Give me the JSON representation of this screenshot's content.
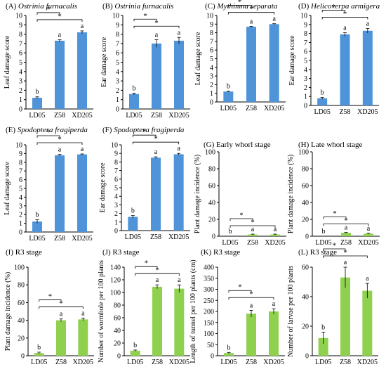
{
  "figure": {
    "background": "#ffffff",
    "blue": "#4f94d8",
    "green": "#8fd14f",
    "axis_color": "#000000"
  },
  "chart_data": [
    {
      "id": "A",
      "type": "bar",
      "panel_label": "(A)",
      "title": "Ostrinia furnacalis",
      "title_italic": true,
      "ylabel": "Leaf damage score",
      "xlabel": "",
      "categories": [
        "LD05",
        "Z58",
        "XD205"
      ],
      "series": [
        {
          "values": [
            1.2,
            7.3,
            8.2
          ],
          "errors": [
            0.1,
            0.1,
            0.15
          ],
          "letters": [
            "b",
            "a",
            "a"
          ]
        }
      ],
      "ylim": [
        0,
        10
      ],
      "yticks": [
        0,
        1,
        2,
        3,
        4,
        5,
        6,
        7,
        8,
        9,
        10
      ],
      "color": "#4f94d8",
      "grid": false,
      "significance": [
        {
          "from": 0,
          "to": 1,
          "label": "*"
        },
        {
          "from": 0,
          "to": 2,
          "label": "*"
        }
      ]
    },
    {
      "id": "B",
      "type": "bar",
      "panel_label": "(B)",
      "title": "Ostrinia furnacalis",
      "title_italic": true,
      "ylabel": "Ear damage score",
      "xlabel": "",
      "categories": [
        "LD05",
        "Z58",
        "XD205"
      ],
      "series": [
        {
          "values": [
            1.6,
            7.0,
            7.3
          ],
          "errors": [
            0.1,
            0.4,
            0.35
          ],
          "letters": [
            "b",
            "a",
            "a"
          ]
        }
      ],
      "ylim": [
        0,
        10
      ],
      "yticks": [
        0,
        1,
        2,
        3,
        4,
        5,
        6,
        7,
        8,
        9,
        10
      ],
      "color": "#4f94d8",
      "grid": false,
      "significance": [
        {
          "from": 0,
          "to": 1,
          "label": "*"
        },
        {
          "from": 0,
          "to": 2,
          "label": "*"
        }
      ]
    },
    {
      "id": "C",
      "type": "bar",
      "panel_label": "(C)",
      "title": "Mythimna separata",
      "title_italic": true,
      "ylabel": "Leaf damage score",
      "xlabel": "",
      "categories": [
        "LD05",
        "Z58",
        "XD205"
      ],
      "series": [
        {
          "values": [
            1.2,
            8.7,
            9.0
          ],
          "errors": [
            0.05,
            0.05,
            0.05
          ],
          "letters": [
            "b",
            "a",
            "a"
          ]
        }
      ],
      "ylim": [
        0,
        10
      ],
      "yticks": [
        0,
        1,
        2,
        3,
        4,
        5,
        6,
        7,
        8,
        9,
        10
      ],
      "color": "#4f94d8",
      "grid": false,
      "significance": [
        {
          "from": 0,
          "to": 1,
          "label": "*"
        },
        {
          "from": 0,
          "to": 2,
          "label": "*"
        }
      ]
    },
    {
      "id": "D",
      "type": "bar",
      "panel_label": "(D)",
      "title": "Helicoverpa armigera",
      "title_italic": true,
      "ylabel": "Ear damage score",
      "xlabel": "",
      "categories": [
        "LD05",
        "Z58",
        "XD205"
      ],
      "series": [
        {
          "values": [
            0.8,
            7.9,
            8.3
          ],
          "errors": [
            0.1,
            0.2,
            0.25
          ],
          "letters": [
            "b",
            "a",
            "a"
          ]
        }
      ],
      "ylim": [
        0,
        10
      ],
      "yticks": [
        0,
        1,
        2,
        3,
        4,
        5,
        6,
        7,
        8,
        9,
        10
      ],
      "color": "#4f94d8",
      "grid": false,
      "significance": [
        {
          "from": 0,
          "to": 1,
          "label": "*"
        },
        {
          "from": 0,
          "to": 2,
          "label": "*"
        }
      ]
    },
    {
      "id": "E",
      "type": "bar",
      "panel_label": "(E)",
      "title": "Spodoptera fragiperda",
      "title_italic": true,
      "ylabel": "Leaf damage score",
      "xlabel": "",
      "categories": [
        "LD05",
        "Z58",
        "XD205"
      ],
      "series": [
        {
          "values": [
            1.2,
            8.8,
            8.9
          ],
          "errors": [
            0.2,
            0.1,
            0.05
          ],
          "letters": [
            "b",
            "a",
            "a"
          ]
        }
      ],
      "ylim": [
        0,
        10
      ],
      "yticks": [
        0,
        1,
        2,
        3,
        4,
        5,
        6,
        7,
        8,
        9,
        10
      ],
      "color": "#4f94d8",
      "grid": false,
      "significance": [
        {
          "from": 0,
          "to": 1,
          "label": "*"
        },
        {
          "from": 0,
          "to": 2,
          "label": "*"
        }
      ]
    },
    {
      "id": "F",
      "type": "bar",
      "panel_label": "(F)",
      "title": "Spodoptera fragiperda",
      "title_italic": true,
      "ylabel": "Ear damage score",
      "xlabel": "",
      "categories": [
        "LD05",
        "Z58",
        "XD205"
      ],
      "series": [
        {
          "values": [
            1.6,
            8.5,
            8.9
          ],
          "errors": [
            0.15,
            0.1,
            0.1
          ],
          "letters": [
            "b",
            "a",
            "a"
          ]
        }
      ],
      "ylim": [
        0,
        10
      ],
      "yticks": [
        0,
        1,
        2,
        3,
        4,
        5,
        6,
        7,
        8,
        9,
        10
      ],
      "color": "#4f94d8",
      "grid": false,
      "significance": [
        {
          "from": 0,
          "to": 1,
          "label": "*"
        },
        {
          "from": 0,
          "to": 2,
          "label": "*"
        }
      ]
    },
    {
      "id": "G",
      "type": "bar",
      "panel_label": "(G)",
      "title": "Early whorl stage",
      "title_italic": false,
      "ylabel": "Plant damage incidence (%)",
      "xlabel": "",
      "categories": [
        "LD05",
        "Z58",
        "XD205"
      ],
      "series": [
        {
          "values": [
            0,
            2,
            2
          ],
          "errors": [
            0,
            0.5,
            0.5
          ],
          "letters": [
            "b",
            "a",
            "a"
          ]
        }
      ],
      "ylim": [
        0,
        100
      ],
      "yticks": [
        0,
        20,
        40,
        60,
        80,
        100
      ],
      "color": "#8fd14f",
      "grid": false,
      "significance": [
        {
          "from": 0,
          "to": 1,
          "label": "*"
        },
        {
          "from": 0,
          "to": 2,
          "label": "*"
        }
      ]
    },
    {
      "id": "H",
      "type": "bar",
      "panel_label": "(H)",
      "title": "Late whorl stage",
      "title_italic": false,
      "ylabel": "Plant damage incidence (%)",
      "xlabel": "",
      "categories": [
        "LD05",
        "Z58",
        "XD205"
      ],
      "series": [
        {
          "values": [
            0,
            4,
            3
          ],
          "errors": [
            0,
            0.5,
            0.5
          ],
          "letters": [
            "b",
            "a",
            "a"
          ]
        }
      ],
      "ylim": [
        0,
        100
      ],
      "yticks": [
        0,
        20,
        40,
        60,
        80,
        100
      ],
      "color": "#8fd14f",
      "grid": false,
      "significance": [
        {
          "from": 0,
          "to": 1,
          "label": "*"
        },
        {
          "from": 0,
          "to": 2,
          "label": "*"
        }
      ]
    },
    {
      "id": "I",
      "type": "bar",
      "panel_label": "(I)",
      "title": "R3 stage",
      "title_italic": false,
      "ylabel": "Plant damage incidence (%)",
      "xlabel": "",
      "categories": [
        "LD05",
        "Z58",
        "XD205"
      ],
      "series": [
        {
          "values": [
            3,
            40,
            41
          ],
          "errors": [
            1,
            1.5,
            1.5
          ],
          "letters": [
            "b",
            "a",
            "a"
          ]
        }
      ],
      "ylim": [
        0,
        100
      ],
      "yticks": [
        0,
        20,
        40,
        60,
        80,
        100
      ],
      "color": "#8fd14f",
      "grid": false,
      "significance": [
        {
          "from": 0,
          "to": 1,
          "label": "*"
        },
        {
          "from": 0,
          "to": 2,
          "label": "*"
        }
      ]
    },
    {
      "id": "J",
      "type": "bar",
      "panel_label": "(J)",
      "title": "R3 stage",
      "title_italic": false,
      "ylabel": "Number of wormhole per 100 plants",
      "xlabel": "",
      "categories": [
        "LD05",
        "Z58",
        "XD205"
      ],
      "series": [
        {
          "values": [
            8,
            109,
            106
          ],
          "errors": [
            1,
            3,
            6
          ],
          "letters": [
            "b",
            "a",
            "a"
          ]
        }
      ],
      "ylim": [
        0,
        140
      ],
      "yticks": [
        0,
        20,
        40,
        60,
        80,
        100,
        120,
        140
      ],
      "color": "#8fd14f",
      "grid": false,
      "significance": [
        {
          "from": 0,
          "to": 1,
          "label": "*"
        },
        {
          "from": 0,
          "to": 2,
          "label": "*"
        }
      ]
    },
    {
      "id": "K",
      "type": "bar",
      "panel_label": "(K)",
      "title": "R3 stage",
      "title_italic": false,
      "ylabel": "Length of tunnel per 100 plants (cm)",
      "xlabel": "",
      "categories": [
        "LD05",
        "Z58",
        "XD205"
      ],
      "series": [
        {
          "values": [
            12,
            190,
            200
          ],
          "errors": [
            3,
            15,
            12
          ],
          "letters": [
            "b",
            "a",
            "a"
          ]
        }
      ],
      "ylim": [
        0,
        400
      ],
      "yticks": [
        0,
        50,
        100,
        150,
        200,
        250,
        300,
        350,
        400
      ],
      "color": "#8fd14f",
      "grid": false,
      "significance": [
        {
          "from": 0,
          "to": 1,
          "label": "*"
        },
        {
          "from": 0,
          "to": 2,
          "label": "*"
        }
      ]
    },
    {
      "id": "L",
      "type": "bar",
      "panel_label": "(L)",
      "title": "R3 stage",
      "title_italic": false,
      "ylabel": "Number of larvae per 100 plants",
      "xlabel": "",
      "categories": [
        "LD05",
        "Z58",
        "XD205"
      ],
      "series": [
        {
          "values": [
            12,
            53,
            44
          ],
          "errors": [
            4,
            7,
            5
          ],
          "letters": [
            "b",
            "a",
            "a"
          ]
        }
      ],
      "ylim": [
        0,
        60
      ],
      "yticks": [
        0,
        20,
        40,
        60
      ],
      "color": "#8fd14f",
      "grid": false,
      "significance": [
        {
          "from": 0,
          "to": 1,
          "label": "*"
        },
        {
          "from": 0,
          "to": 2,
          "label": "*"
        }
      ]
    }
  ]
}
